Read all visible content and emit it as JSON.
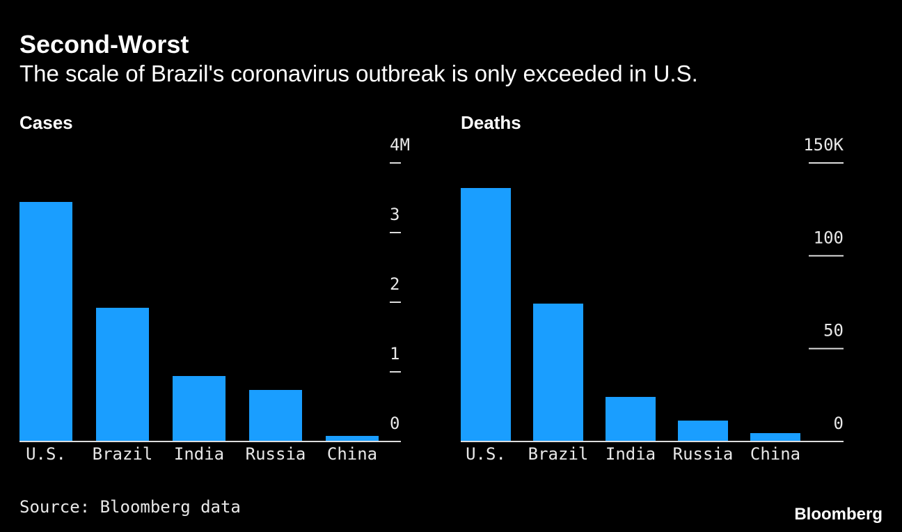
{
  "title": "Second-Worst",
  "subtitle": "The scale of Brazil's coronavirus outbreak is only exceeded in U.S.",
  "source": "Source: Bloomberg data",
  "brand": "Bloomberg",
  "chart_data": [
    {
      "type": "bar",
      "title": "Cases",
      "categories": [
        "U.S.",
        "Brazil",
        "India",
        "Russia",
        "China"
      ],
      "values": [
        3.44,
        1.92,
        0.94,
        0.74,
        0.08
      ],
      "color": "#1a9eff",
      "ylim": [
        0,
        4
      ],
      "yticks": [
        0,
        1,
        2,
        3,
        {
          "value": 4,
          "label": "4M"
        }
      ]
    },
    {
      "type": "bar",
      "title": "Deaths",
      "categories": [
        "U.S.",
        "Brazil",
        "India",
        "Russia",
        "China"
      ],
      "values": [
        136.5,
        74.25,
        24,
        11.25,
        4.5
      ],
      "color": "#1a9eff",
      "ylim": [
        0,
        150
      ],
      "yticks": [
        0,
        50,
        100,
        {
          "value": 150,
          "label": "150K"
        }
      ]
    }
  ]
}
